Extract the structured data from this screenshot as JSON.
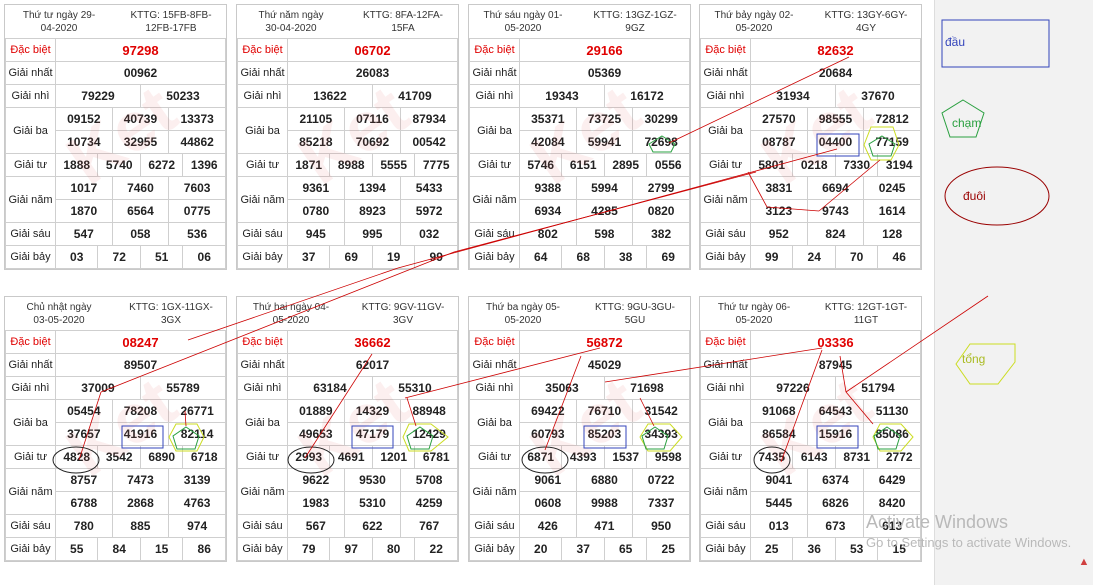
{
  "labels": {
    "db": "Đặc biệt",
    "g1": "Giải nhất",
    "g2": "Giải nhì",
    "g3": "Giải ba",
    "g4": "Giải tư",
    "g5": "Giải năm",
    "g6": "Giải sáu",
    "g7": "Giải bảy"
  },
  "watermark": "Ket",
  "cards": [
    {
      "date": "Thứ tư ngày 29-04-2020",
      "kttg": "KTTG: 15FB-8FB-12FB-17FB",
      "db": "97298",
      "g1": "00962",
      "g2": [
        "79229",
        "50233"
      ],
      "g3": [
        "09152",
        "40739",
        "13373",
        "10734",
        "32955",
        "44862"
      ],
      "g4": [
        "1888",
        "5740",
        "6272",
        "1396"
      ],
      "g5": [
        "1017",
        "7460",
        "7603",
        "1870",
        "6564",
        "0775"
      ],
      "g6": [
        "547",
        "058",
        "536"
      ],
      "g7": [
        "03",
        "72",
        "51",
        "06"
      ]
    },
    {
      "date": "Thứ năm ngày 30-04-2020",
      "kttg": "KTTG: 8FA-12FA-15FA",
      "db": "06702",
      "g1": "26083",
      "g2": [
        "13622",
        "41709"
      ],
      "g3": [
        "21105",
        "07116",
        "87934",
        "85218",
        "70692",
        "00542"
      ],
      "g4": [
        "1871",
        "8988",
        "5555",
        "7775"
      ],
      "g5": [
        "9361",
        "1394",
        "5433",
        "0780",
        "8923",
        "5972"
      ],
      "g6": [
        "945",
        "995",
        "032"
      ],
      "g7": [
        "37",
        "69",
        "19",
        "99"
      ]
    },
    {
      "date": "Thứ sáu ngày 01-05-2020",
      "kttg": "KTTG: 13GZ-1GZ-9GZ",
      "db": "29166",
      "g1": "05369",
      "g2": [
        "19343",
        "16172"
      ],
      "g3": [
        "35371",
        "73725",
        "30299",
        "42084",
        "59941",
        "72698"
      ],
      "g4": [
        "5746",
        "6151",
        "2895",
        "0556"
      ],
      "g5": [
        "9388",
        "5994",
        "2799",
        "6934",
        "4285",
        "0820"
      ],
      "g6": [
        "802",
        "598",
        "382"
      ],
      "g7": [
        "64",
        "68",
        "38",
        "69"
      ]
    },
    {
      "date": "Thứ bảy ngày 02-05-2020",
      "kttg": "KTTG: 13GY-6GY-4GY",
      "db": "82632",
      "g1": "20684",
      "g2": [
        "31934",
        "37670"
      ],
      "g3": [
        "27570",
        "98555",
        "72812",
        "08787",
        "04400",
        "77159"
      ],
      "g4": [
        "5801",
        "0218",
        "7330",
        "3194"
      ],
      "g5": [
        "3831",
        "6694",
        "0245",
        "3123",
        "9743",
        "1614"
      ],
      "g6": [
        "952",
        "824",
        "128"
      ],
      "g7": [
        "99",
        "24",
        "70",
        "46"
      ]
    },
    {
      "date": "Chủ nhật ngày 03-05-2020",
      "kttg": "KTTG: 1GX-11GX-3GX",
      "db": "08247",
      "g1": "89507",
      "g2": [
        "37009",
        "55789"
      ],
      "g3": [
        "05454",
        "78208",
        "26771",
        "37657",
        "41916",
        "82114"
      ],
      "g4": [
        "4828",
        "3542",
        "6890",
        "6718"
      ],
      "g5": [
        "8757",
        "7473",
        "3139",
        "6788",
        "2868",
        "4763"
      ],
      "g6": [
        "780",
        "885",
        "974"
      ],
      "g7": [
        "55",
        "84",
        "15",
        "86"
      ]
    },
    {
      "date": "Thứ hai ngày 04-05-2020",
      "kttg": "KTTG: 9GV-11GV-3GV",
      "db": "36662",
      "g1": "62017",
      "g2": [
        "63184",
        "55310"
      ],
      "g3": [
        "01889",
        "14329",
        "88948",
        "49653",
        "47179",
        "12429"
      ],
      "g4": [
        "2993",
        "4691",
        "1201",
        "6781"
      ],
      "g5": [
        "9622",
        "9530",
        "5708",
        "1983",
        "5310",
        "4259"
      ],
      "g6": [
        "567",
        "622",
        "767"
      ],
      "g7": [
        "79",
        "97",
        "80",
        "22"
      ]
    },
    {
      "date": "Thứ ba ngày 05-05-2020",
      "kttg": "KTTG: 9GU-3GU-5GU",
      "db": "56872",
      "g1": "45029",
      "g2": [
        "35063",
        "71698"
      ],
      "g3": [
        "69422",
        "76710",
        "31542",
        "60793",
        "85203",
        "34393"
      ],
      "g4": [
        "6871",
        "4393",
        "1537",
        "9598"
      ],
      "g5": [
        "9061",
        "6880",
        "0722",
        "0608",
        "9988",
        "7337"
      ],
      "g6": [
        "426",
        "471",
        "950"
      ],
      "g7": [
        "20",
        "37",
        "65",
        "25"
      ]
    },
    {
      "date": "Thứ tư ngày 06-05-2020",
      "kttg": "KTTG: 12GT-1GT-11GT",
      "db": "03336",
      "g1": "87945",
      "g2": [
        "97226",
        "51794"
      ],
      "g3": [
        "91068",
        "64543",
        "51130",
        "86584",
        "15916",
        "85086"
      ],
      "g4": [
        "7435",
        "6143",
        "8731",
        "2772"
      ],
      "g5": [
        "9041",
        "6374",
        "6429",
        "5445",
        "6826",
        "8420"
      ],
      "g6": [
        "013",
        "673",
        "613"
      ],
      "g7": [
        "25",
        "36",
        "53",
        "15"
      ]
    }
  ],
  "legend": {
    "dau": "đầu",
    "cham": "chạm",
    "duoi": "đuôi",
    "tong": "tổng"
  },
  "colors": {
    "special_prize": "#e00000",
    "dau": "#3344bb",
    "cham": "#2aa040",
    "duoi": "#990000",
    "tong": "#ccdd22",
    "line": "#cc0000"
  },
  "activation": {
    "title": "Activate Windows",
    "subtitle": "Go to Settings to activate Windows."
  }
}
